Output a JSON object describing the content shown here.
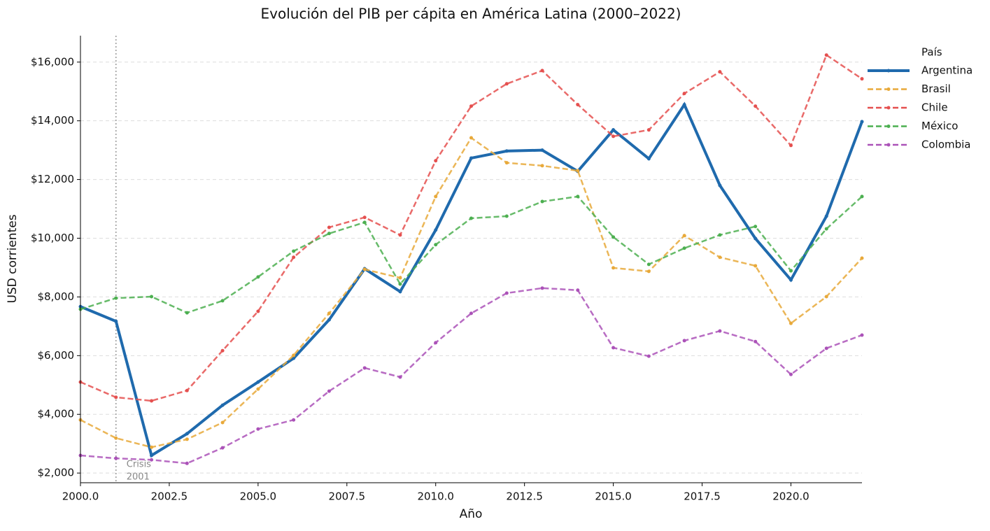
{
  "chart_data": {
    "type": "line",
    "title": "Evolución del PIB per cápita en América Latina (2000–2022)",
    "xlabel": "Año",
    "ylabel": "USD corrientes",
    "x": [
      2000,
      2001,
      2002,
      2003,
      2004,
      2005,
      2006,
      2007,
      2008,
      2009,
      2010,
      2011,
      2012,
      2013,
      2014,
      2015,
      2016,
      2017,
      2018,
      2019,
      2020,
      2021,
      2022
    ],
    "series": [
      {
        "name": "Argentina",
        "color": "#1f6aad",
        "style": "solid",
        "values": [
          7670,
          7170,
          2600,
          3340,
          4310,
          5100,
          5910,
          7220,
          8960,
          8180,
          10280,
          12730,
          12970,
          13000,
          12280,
          13690,
          12710,
          14550,
          11800,
          9990,
          8580,
          10750,
          13970
        ]
      },
      {
        "name": "Brasil",
        "color": "#e8a93a",
        "style": "dashed",
        "values": [
          3810,
          3190,
          2880,
          3150,
          3720,
          4860,
          6010,
          7440,
          8940,
          8650,
          11420,
          13420,
          12570,
          12470,
          12300,
          8990,
          8870,
          10090,
          9350,
          9060,
          7100,
          8010,
          9320
        ]
      },
      {
        "name": "Chile",
        "color": "#e5504f",
        "style": "dashed",
        "values": [
          5100,
          4580,
          4460,
          4810,
          6170,
          7510,
          9350,
          10370,
          10710,
          10110,
          12640,
          14500,
          15260,
          15710,
          14550,
          13470,
          13690,
          14930,
          15670,
          14500,
          13160,
          16240,
          15430
        ]
      },
      {
        "name": "México",
        "color": "#4caf50",
        "style": "dashed",
        "values": [
          7580,
          7960,
          8010,
          7460,
          7870,
          8680,
          9560,
          10160,
          10540,
          8440,
          9780,
          10680,
          10750,
          11250,
          11420,
          10040,
          9110,
          9660,
          10110,
          10400,
          8890,
          10320,
          11420
        ]
      },
      {
        "name": "Colombia",
        "color": "#ab52b8",
        "style": "dashed",
        "values": [
          2600,
          2500,
          2450,
          2330,
          2860,
          3500,
          3810,
          4790,
          5580,
          5270,
          6440,
          7440,
          8130,
          8300,
          8230,
          6270,
          5980,
          6510,
          6840,
          6480,
          5360,
          6250,
          6700
        ]
      }
    ],
    "xlim": [
      2000,
      2022
    ],
    "xticks": [
      {
        "value": 2000,
        "label": "2000.0"
      },
      {
        "value": 2002.5,
        "label": "2002.5"
      },
      {
        "value": 2005,
        "label": "2005.0"
      },
      {
        "value": 2007.5,
        "label": "2007.5"
      },
      {
        "value": 2010,
        "label": "2010.0"
      },
      {
        "value": 2012.5,
        "label": "2012.5"
      },
      {
        "value": 2015,
        "label": "2015.0"
      },
      {
        "value": 2017.5,
        "label": "2017.5"
      },
      {
        "value": 2020,
        "label": "2020.0"
      }
    ],
    "ylim": [
      1670,
      16900
    ],
    "yticks": [
      {
        "value": 2000,
        "label": "$2,000"
      },
      {
        "value": 4000,
        "label": "$4,000"
      },
      {
        "value": 6000,
        "label": "$6,000"
      },
      {
        "value": 8000,
        "label": "$8,000"
      },
      {
        "value": 10000,
        "label": "$10,000"
      },
      {
        "value": 12000,
        "label": "$12,000"
      },
      {
        "value": 14000,
        "label": "$14,000"
      },
      {
        "value": 16000,
        "label": "$16,000"
      }
    ],
    "grid": true,
    "legend": {
      "title": "País",
      "position": "outside right"
    },
    "annotation": {
      "x": 2001,
      "lines": [
        "Crisis",
        "2001"
      ]
    }
  }
}
